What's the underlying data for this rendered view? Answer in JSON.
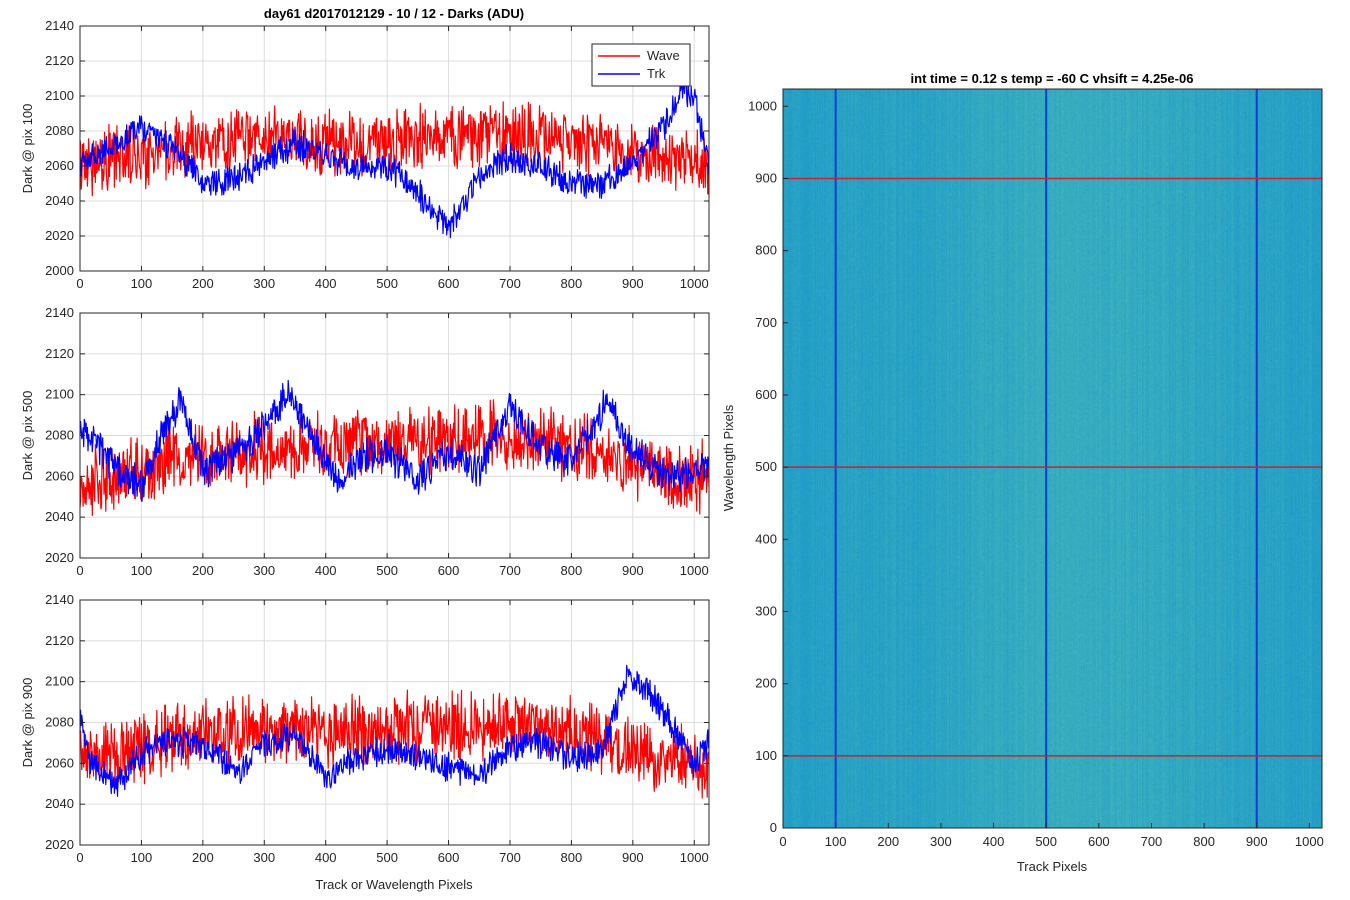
{
  "figure": {
    "main_title": "day61 d2017012129 - 10 / 12 - Darks (ADU)",
    "shared_xlabel": "Track or Wavelength Pixels"
  },
  "colors": {
    "wave": "#ff0000",
    "trk": "#0000ff",
    "grid": "#dcdcdc",
    "axis": "#262626",
    "image_base": "#1f9bc8",
    "image_light": "#56c3b4",
    "image_dark": "#0a3fd6",
    "marker_rows": "#d0202a"
  },
  "chart_data": [
    {
      "type": "line",
      "ylabel": "Dark @ pix 100",
      "xlim": [
        0,
        1024
      ],
      "ylim": [
        2000,
        2140
      ],
      "xticks": [
        0,
        100,
        200,
        300,
        400,
        500,
        600,
        700,
        800,
        900,
        1000
      ],
      "yticks": [
        2000,
        2020,
        2040,
        2060,
        2080,
        2100,
        2120,
        2140
      ],
      "grid": true,
      "legend": {
        "location": "top-right",
        "entries": [
          "Wave",
          "Trk"
        ]
      },
      "series": [
        {
          "name": "Wave",
          "color": "#ff0000",
          "x": [
            0,
            50,
            100,
            150,
            200,
            250,
            300,
            350,
            400,
            450,
            500,
            550,
            600,
            650,
            700,
            750,
            800,
            850,
            900,
            950,
            1000,
            1024
          ],
          "values": [
            2062,
            2064,
            2067,
            2070,
            2072,
            2074,
            2075,
            2074,
            2072,
            2071,
            2074,
            2076,
            2077,
            2078,
            2079,
            2078,
            2075,
            2072,
            2068,
            2064,
            2062,
            2058
          ],
          "noise_amplitude": 15
        },
        {
          "name": "Trk",
          "color": "#0000ff",
          "x": [
            0,
            40,
            100,
            130,
            170,
            200,
            250,
            300,
            350,
            400,
            450,
            500,
            550,
            580,
            600,
            650,
            700,
            750,
            800,
            850,
            900,
            950,
            980,
            1000,
            1024
          ],
          "values": [
            2060,
            2068,
            2082,
            2077,
            2065,
            2050,
            2053,
            2062,
            2073,
            2066,
            2060,
            2060,
            2045,
            2032,
            2025,
            2055,
            2065,
            2060,
            2050,
            2048,
            2063,
            2083,
            2104,
            2100,
            2058
          ],
          "noise_amplitude": 7
        }
      ]
    },
    {
      "type": "line",
      "ylabel": "Dark @ pix 500",
      "xlim": [
        0,
        1024
      ],
      "ylim": [
        2020,
        2140
      ],
      "xticks": [
        0,
        100,
        200,
        300,
        400,
        500,
        600,
        700,
        800,
        900,
        1000
      ],
      "yticks": [
        2020,
        2040,
        2060,
        2080,
        2100,
        2120,
        2140
      ],
      "grid": true,
      "series": [
        {
          "name": "Wave",
          "color": "#ff0000",
          "x": [
            0,
            50,
            100,
            150,
            200,
            250,
            300,
            350,
            400,
            450,
            500,
            550,
            600,
            650,
            700,
            750,
            800,
            850,
            900,
            950,
            1000,
            1024
          ],
          "values": [
            2056,
            2060,
            2064,
            2068,
            2070,
            2072,
            2073,
            2074,
            2075,
            2076,
            2077,
            2078,
            2078,
            2079,
            2080,
            2078,
            2074,
            2070,
            2066,
            2062,
            2060,
            2062
          ],
          "noise_amplitude": 14
        },
        {
          "name": "Trk",
          "color": "#0000ff",
          "x": [
            0,
            20,
            50,
            100,
            130,
            165,
            200,
            250,
            300,
            340,
            380,
            420,
            460,
            500,
            550,
            600,
            650,
            700,
            750,
            800,
            860,
            900,
            950,
            1000,
            1024
          ],
          "values": [
            2082,
            2080,
            2067,
            2055,
            2078,
            2098,
            2062,
            2070,
            2084,
            2102,
            2078,
            2057,
            2070,
            2072,
            2058,
            2072,
            2062,
            2094,
            2075,
            2067,
            2097,
            2072,
            2060,
            2062,
            2068
          ],
          "noise_amplitude": 7
        }
      ]
    },
    {
      "type": "line",
      "ylabel": "Dark @ pix 900",
      "xlabel": "Track or Wavelength Pixels",
      "xlim": [
        0,
        1024
      ],
      "ylim": [
        2020,
        2140
      ],
      "xticks": [
        0,
        100,
        200,
        300,
        400,
        500,
        600,
        700,
        800,
        900,
        1000
      ],
      "yticks": [
        2020,
        2040,
        2060,
        2080,
        2100,
        2120,
        2140
      ],
      "grid": true,
      "series": [
        {
          "name": "Wave",
          "color": "#ff0000",
          "x": [
            0,
            50,
            100,
            150,
            200,
            250,
            300,
            350,
            400,
            450,
            500,
            550,
            600,
            650,
            700,
            750,
            800,
            850,
            900,
            950,
            1000,
            1024
          ],
          "values": [
            2062,
            2064,
            2067,
            2071,
            2074,
            2076,
            2077,
            2076,
            2075,
            2076,
            2077,
            2078,
            2078,
            2079,
            2080,
            2078,
            2075,
            2070,
            2066,
            2062,
            2060,
            2060
          ],
          "noise_amplitude": 14
        },
        {
          "name": "Trk",
          "color": "#0000ff",
          "x": [
            0,
            20,
            60,
            100,
            150,
            200,
            260,
            300,
            350,
            400,
            450,
            500,
            550,
            600,
            650,
            700,
            750,
            800,
            850,
            890,
            930,
            970,
            1000,
            1024
          ],
          "values": [
            2080,
            2060,
            2050,
            2065,
            2072,
            2068,
            2055,
            2070,
            2075,
            2052,
            2063,
            2067,
            2062,
            2058,
            2055,
            2068,
            2070,
            2063,
            2065,
            2104,
            2094,
            2075,
            2060,
            2072
          ],
          "noise_amplitude": 6
        }
      ]
    },
    {
      "type": "heatmap",
      "title": "int time = 0.12 s    temp = -60 C    vhsift = 4.25e-06",
      "xlabel": "Track Pixels",
      "ylabel": "Wavelength Pixels",
      "xlim": [
        0,
        1024
      ],
      "ylim": [
        0,
        1024
      ],
      "xticks": [
        0,
        100,
        200,
        300,
        400,
        500,
        600,
        700,
        800,
        900,
        1000
      ],
      "yticks": [
        0,
        100,
        200,
        300,
        400,
        500,
        600,
        700,
        800,
        900,
        1000
      ],
      "colormap": "parula",
      "grid": false,
      "vertical_marker_columns": [
        100,
        500,
        900
      ],
      "horizontal_marker_rows": [
        100,
        500,
        900
      ]
    }
  ]
}
